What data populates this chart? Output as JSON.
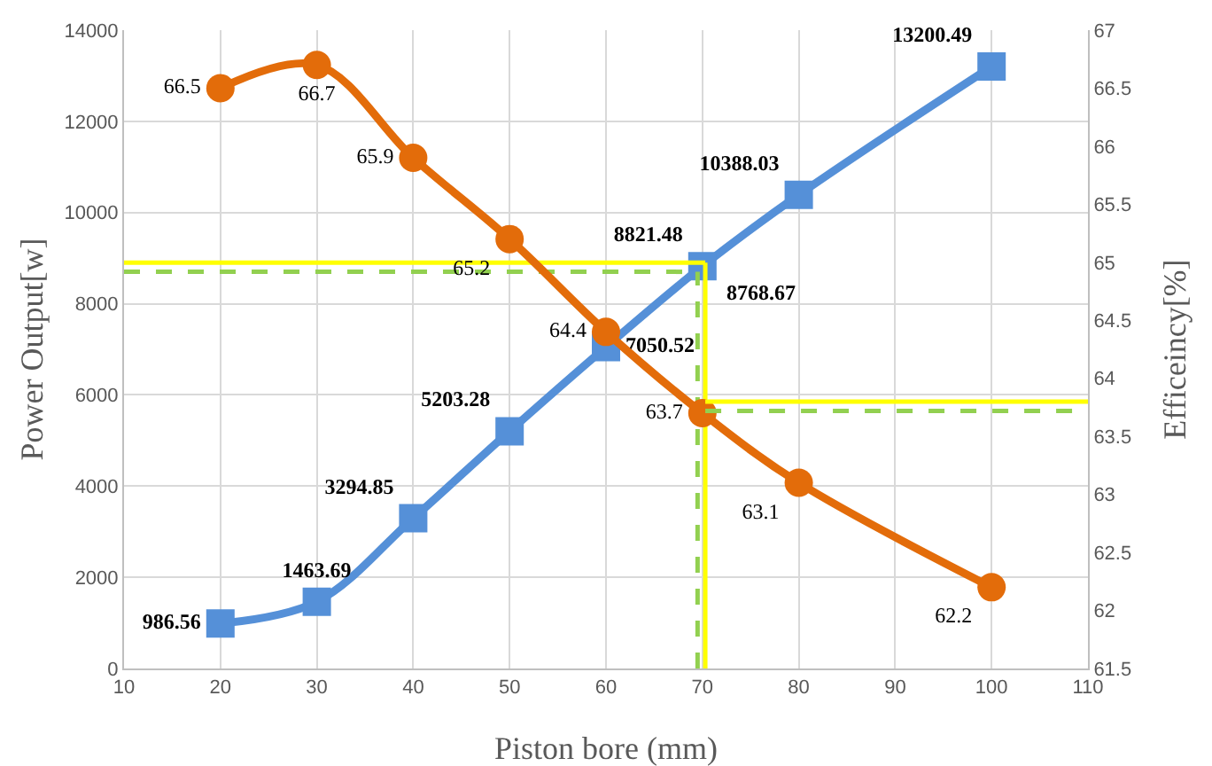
{
  "chart_data": {
    "type": "line",
    "xlabel": "Piston bore (mm)",
    "ylabel": "Power Output[w]",
    "y2label": "Efficeincy[%]",
    "x": [
      20,
      30,
      40,
      50,
      60,
      70,
      80,
      100
    ],
    "series": [
      {
        "color": "#5590d8",
        "marker": "square",
        "values": [
          986.56,
          1463.69,
          3294.85,
          5203.28,
          7050.52,
          8821.48,
          10388.03,
          13200.49
        ],
        "value_labels": [
          "986.56",
          "1463.69",
          "3294.85",
          "5203.28",
          "7050.52",
          "8821.48",
          "10388.03",
          "13200.49"
        ]
      },
      {
        "color": "#e36c0a",
        "marker": "circle",
        "axis": "y2",
        "values": [
          66.5,
          66.7,
          65.9,
          65.2,
          64.4,
          63.7,
          63.1,
          62.2
        ],
        "value_labels": [
          "66.5",
          "66.7",
          "65.9",
          "65.2",
          "64.4",
          "63.7",
          "63.1",
          "62.2"
        ]
      },
      {
        "type": "line",
        "color": "#92d050",
        "marker": "none",
        "line_style": "dashed",
        "x": [
          10,
          69.5
        ],
        "values": [
          8700,
          8700
        ]
      },
      {
        "type": "line",
        "color": "#92d050",
        "marker": "none",
        "line_style": "dashed",
        "x": [
          69.5,
          69.5
        ],
        "values": [
          0,
          8700
        ]
      },
      {
        "type": "line",
        "color": "#92d050",
        "marker": "none",
        "line_style": "dashed",
        "axis": "y2",
        "x": [
          70.3,
          110
        ],
        "values": [
          63.72,
          63.72
        ]
      },
      {
        "type": "line",
        "color": "#ffff00",
        "marker": "none",
        "line_style": "solid",
        "x": [
          10,
          70.3
        ],
        "values": [
          8900,
          8900
        ]
      },
      {
        "type": "line",
        "color": "#ffff00",
        "marker": "none",
        "line_style": "solid",
        "x": [
          70.3,
          70.3
        ],
        "values": [
          0,
          8900
        ]
      },
      {
        "type": "line",
        "color": "#ffff00",
        "marker": "none",
        "line_style": "solid",
        "axis": "y2",
        "x": [
          70.3,
          110
        ],
        "values": [
          63.8,
          63.8
        ]
      }
    ],
    "annotations": [
      {
        "text": "8768.67",
        "x": 70,
        "y": 8768.67
      }
    ],
    "xlim": [
      10,
      110
    ],
    "xticks": [
      10,
      20,
      30,
      40,
      50,
      60,
      70,
      80,
      90,
      100,
      110
    ],
    "ylim": [
      0,
      14000
    ],
    "yticks": [
      0,
      2000,
      4000,
      6000,
      8000,
      10000,
      12000,
      14000
    ],
    "y2lim": [
      61.5,
      67
    ],
    "y2ticks": [
      61.5,
      62,
      62.5,
      63,
      63.5,
      64,
      64.5,
      65,
      65.5,
      66,
      66.5,
      67
    ],
    "grid": true
  }
}
